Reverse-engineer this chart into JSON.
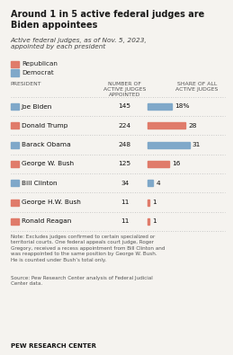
{
  "title": "Around 1 in 5 active federal judges are\nBiden appointees",
  "subtitle": "Active federal judges, as of Nov. 5, 2023,\nappointed by each president",
  "presidents": [
    "Joe Biden",
    "Donald Trump",
    "Barack Obama",
    "George W. Bush",
    "Bill Clinton",
    "George H.W. Bush",
    "Ronald Reagan"
  ],
  "parties": [
    "Democrat",
    "Republican",
    "Democrat",
    "Republican",
    "Democrat",
    "Republican",
    "Republican"
  ],
  "num_judges": [
    145,
    224,
    248,
    125,
    34,
    11,
    11
  ],
  "share": [
    18,
    28,
    31,
    16,
    4,
    1,
    1
  ],
  "share_labels": [
    "18%",
    "28",
    "31",
    "16",
    "4",
    "1",
    "1"
  ],
  "color_dem": "#7fa8c9",
  "color_rep": "#e07b6a",
  "bg_color": "#f5f3ef",
  "note": "Note: Excludes judges confirmed to certain specialized or\nterritorial courts. One federal appeals court judge, Roger\nGregory, received a recess appointment from Bill Clinton and\nwas reappointed to the same position by George W. Bush.\nHe is counted under Bush’s total only.",
  "source": "Source: Pew Research Center analysis of Federal Judicial\nCenter data.",
  "footer": "PEW RESEARCH CENTER",
  "col1_header": "NUMBER OF\nACTIVE JUDGES\nAPPOINTED",
  "col2_header": "SHARE OF ALL\nACTIVE JUDGES",
  "president_header": "PRESIDENT",
  "max_share": 34
}
